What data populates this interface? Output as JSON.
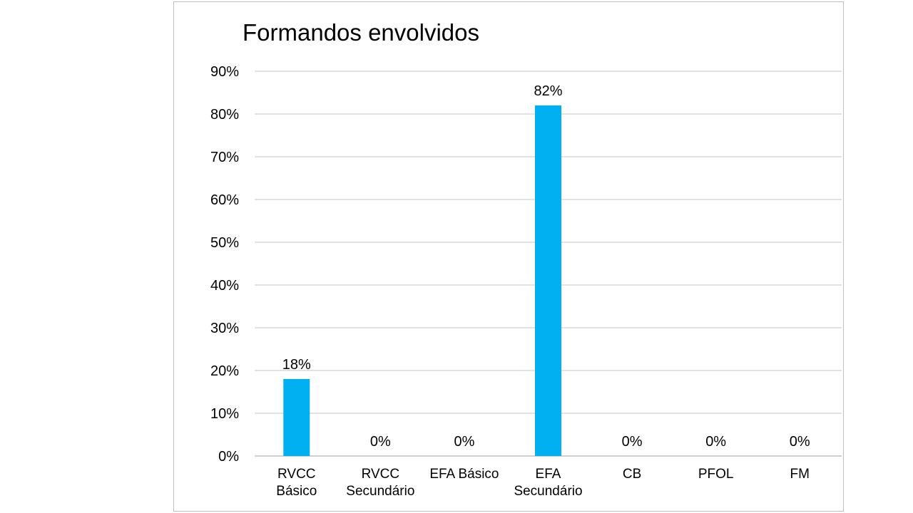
{
  "chart_data": {
    "type": "bar",
    "title": "Formandos envolvidos",
    "categories": [
      [
        "RVCC",
        "Básico"
      ],
      [
        "RVCC",
        "Secundário"
      ],
      [
        "EFA Básico"
      ],
      [
        "EFA",
        "Secundário"
      ],
      [
        "CB"
      ],
      [
        "PFOL"
      ],
      [
        "FM"
      ]
    ],
    "values": [
      18,
      0,
      0,
      82,
      0,
      0,
      0
    ],
    "data_labels": [
      "18%",
      "0%",
      "0%",
      "82%",
      "0%",
      "0%",
      "0%"
    ],
    "y_ticks": [
      0,
      10,
      20,
      30,
      40,
      50,
      60,
      70,
      80,
      90
    ],
    "y_tick_labels": [
      "0%",
      "10%",
      "20%",
      "30%",
      "40%",
      "50%",
      "60%",
      "70%",
      "80%",
      "90%"
    ],
    "ylim": [
      0,
      90
    ],
    "grid": true,
    "legend": "none",
    "bar_color": "#00b0f0",
    "grid_color": "#d9d9d9",
    "axis_color": "#bfbfbf"
  }
}
